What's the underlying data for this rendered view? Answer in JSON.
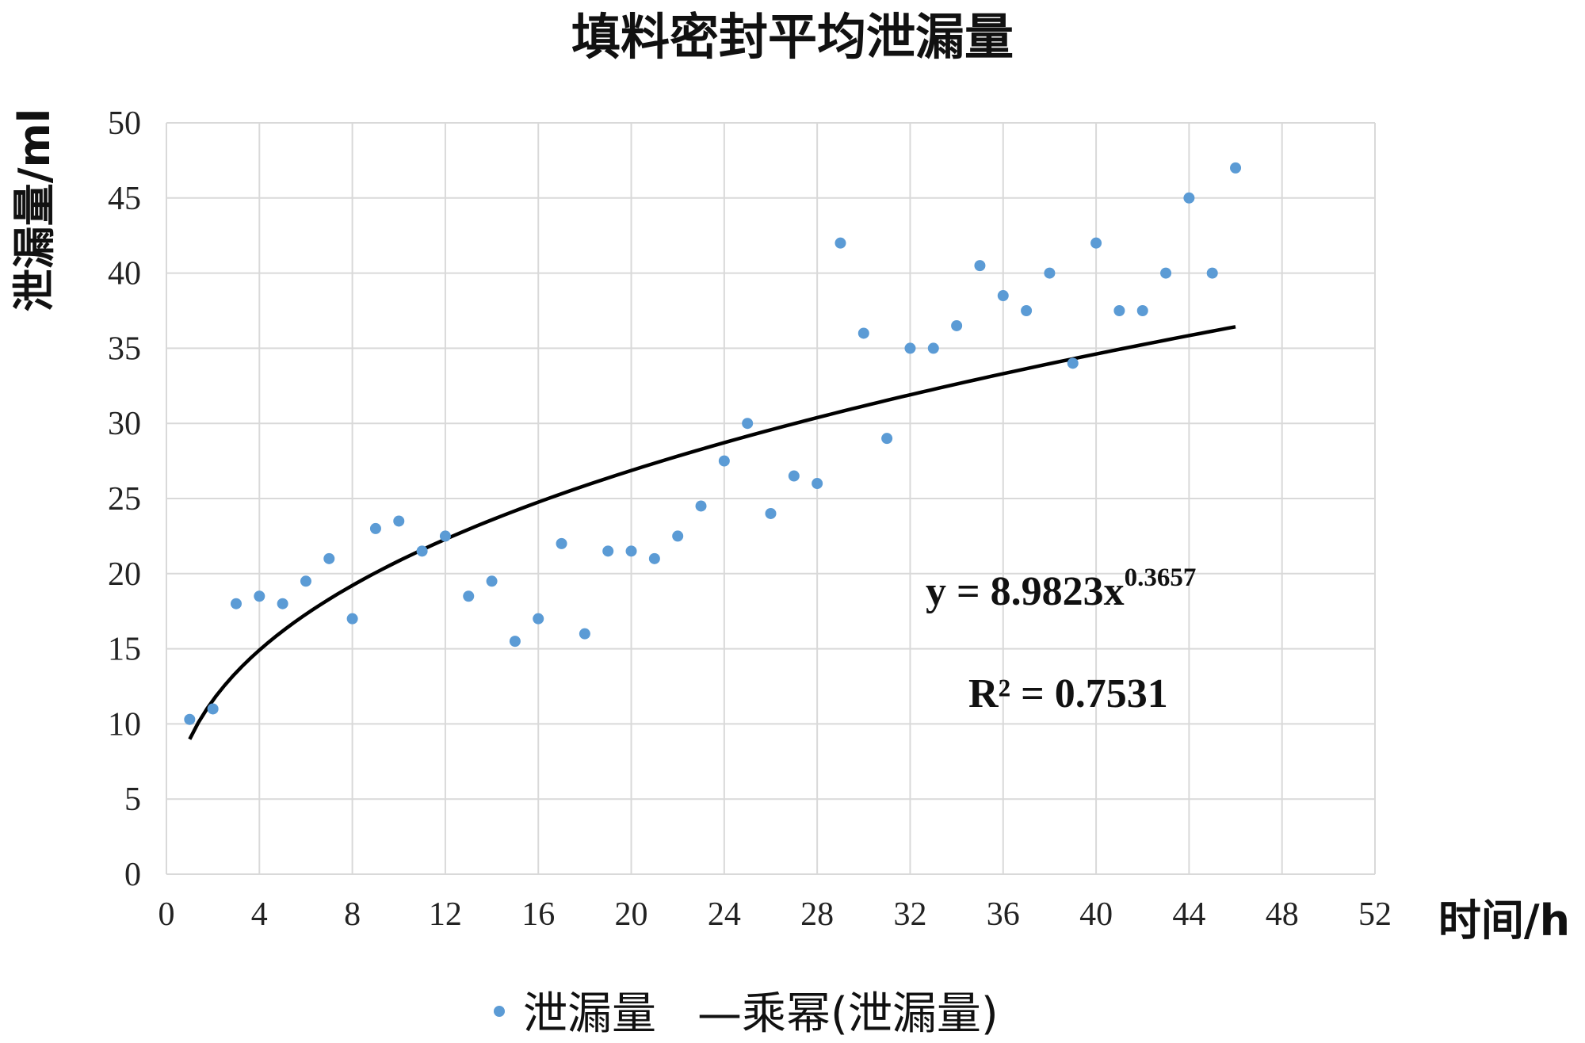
{
  "chart_data": {
    "type": "scatter",
    "title": "填料密封平均泄漏量",
    "xlabel": "时间/h",
    "ylabel": "泄漏量/ml",
    "xlim": [
      0,
      52
    ],
    "ylim": [
      0,
      50
    ],
    "x_ticks": [
      0,
      4,
      8,
      12,
      16,
      20,
      24,
      28,
      32,
      36,
      40,
      44,
      48,
      52
    ],
    "y_ticks": [
      0,
      5,
      10,
      15,
      20,
      25,
      30,
      35,
      40,
      45,
      50
    ],
    "grid": true,
    "colors": {
      "points": "#5b9bd5",
      "trendline": "#000000",
      "grid": "#d9d9d9"
    },
    "series": [
      {
        "name": "泄漏量",
        "x": [
          1,
          2,
          3,
          4,
          5,
          6,
          7,
          8,
          9,
          10,
          11,
          12,
          13,
          14,
          15,
          16,
          17,
          18,
          19,
          20,
          21,
          22,
          23,
          24,
          25,
          26,
          27,
          28,
          29,
          30,
          31,
          32,
          33,
          34,
          35,
          36,
          37,
          38,
          39,
          40,
          41,
          42,
          43,
          44,
          45,
          46
        ],
        "y": [
          10.3,
          11,
          18,
          18.5,
          18,
          19.5,
          21,
          17,
          23,
          23.5,
          21.5,
          22.5,
          18.5,
          19.5,
          15.5,
          17,
          22,
          16,
          21.5,
          21.5,
          21,
          22.5,
          24.5,
          27.5,
          30,
          24,
          26.5,
          26,
          42,
          36,
          29,
          35,
          35,
          36.5,
          40.5,
          38.5,
          37.5,
          40,
          34,
          42,
          37.5,
          37.5,
          40,
          45,
          40,
          47
        ]
      }
    ],
    "trendline": {
      "name": "乘幂(泄漏量)",
      "coefficient": 8.9823,
      "exponent": 0.3657,
      "x_range": [
        1,
        46
      ]
    },
    "annotations": {
      "equation_main": "y = 8.9823x",
      "equation_exponent": "0.3657",
      "r_squared": "R² = 0.7531"
    },
    "legend": {
      "placement": "bottom",
      "entries": [
        "泄漏量",
        "—乘幂(泄漏量)"
      ]
    }
  }
}
